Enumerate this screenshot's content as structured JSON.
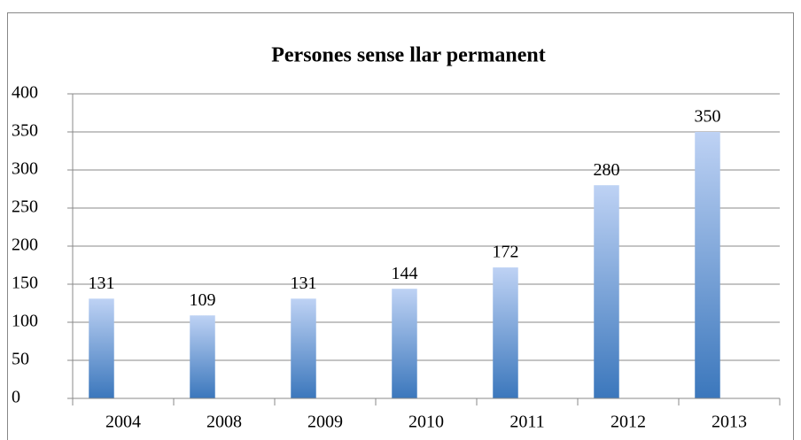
{
  "chart_data": {
    "type": "bar",
    "title": "Persones sense llar permanent",
    "categories": [
      "2004",
      "2008",
      "2009",
      "2010",
      "2011",
      "2012",
      "2013"
    ],
    "values": [
      131,
      109,
      131,
      144,
      172,
      280,
      350
    ],
    "color": {
      "top": "#bed2f4",
      "bottom": "#3b77bc"
    },
    "ylim": [
      0,
      400
    ],
    "yticks": [
      0,
      50,
      100,
      150,
      200,
      250,
      300,
      350,
      400
    ],
    "grid": true
  }
}
